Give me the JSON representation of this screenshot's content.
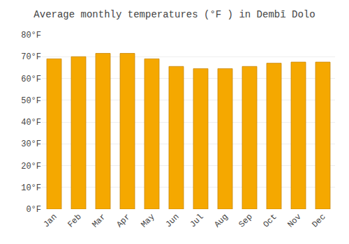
{
  "chart_data": {
    "type": "bar",
    "title": "Average monthly temperatures (°F ) in Dembī Dolo",
    "categories": [
      "Jan",
      "Feb",
      "Mar",
      "Apr",
      "May",
      "Jun",
      "Jul",
      "Aug",
      "Sep",
      "Oct",
      "Nov",
      "Dec"
    ],
    "values": [
      69,
      70,
      71.5,
      71.5,
      69,
      65.5,
      64.5,
      64.5,
      65.5,
      67,
      67.5,
      67.5
    ],
    "color": "#F5A800",
    "ylim": [
      0,
      80
    ],
    "yticks": [
      {
        "value": 0,
        "label": "0°F"
      },
      {
        "value": 10,
        "label": "10°F"
      },
      {
        "value": 20,
        "label": "20°F"
      },
      {
        "value": 30,
        "label": "30°F"
      },
      {
        "value": 40,
        "label": "40°F"
      },
      {
        "value": 50,
        "label": "50°F"
      },
      {
        "value": 60,
        "label": "60°F"
      },
      {
        "value": 70,
        "label": "70°F"
      },
      {
        "value": 80,
        "label": "80°F"
      }
    ],
    "grid": true
  }
}
